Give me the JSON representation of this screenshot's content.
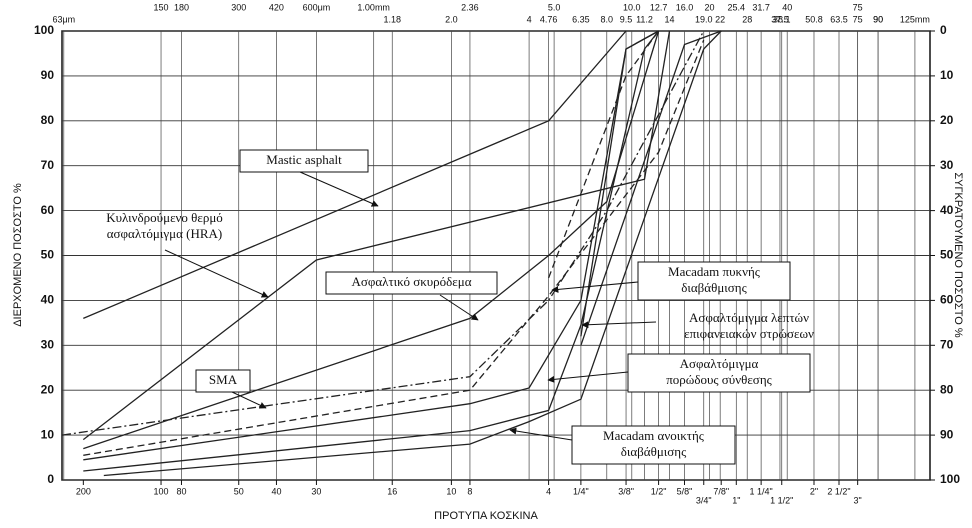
{
  "chart_data": {
    "type": "line",
    "xlabel": "ΠΡΟΤΥΠΑ ΚΟΣΚΙΝΑ",
    "ylabel": "ΔΙΕΡΧΟΜΕΝΟ ΠΟΣΟΣΤΟ %",
    "y2label": "ΣΥΓΚΡΑΤΟΥΜΕΝΟ ΠΟΣΟΣΤΟ %",
    "xscale": "log",
    "xlim": [
      0.062,
      143
    ],
    "ylim": [
      0,
      100
    ],
    "yticks": [
      0,
      10,
      20,
      30,
      40,
      50,
      60,
      70,
      80,
      90,
      100
    ],
    "y2lim": [
      100,
      0
    ],
    "y2ticks": [
      100,
      90,
      80,
      70,
      60,
      50,
      40,
      30,
      20,
      10,
      0
    ],
    "grid": true,
    "x2ticks": [
      {
        "value": 0.063,
        "label": "63μm"
      },
      75,
      90,
      {
        "value": 0.15,
        "label": "150"
      },
      {
        "value": 0.18,
        "label": "180"
      },
      {
        "value": 0.3,
        "label": "300"
      },
      {
        "value": 0.42,
        "label": "420"
      },
      {
        "value": 0.6,
        "label": "600μm"
      },
      {
        "value": 1.0,
        "label": "1.00mm"
      },
      1.18,
      {
        "value": 2.0,
        "label": "2.0"
      },
      2.36,
      4,
      4.76,
      {
        "value": 5.0,
        "label": "5.0"
      },
      6.35,
      {
        "value": 8.0,
        "label": "8.0"
      },
      9.5,
      {
        "value": 10.0,
        "label": "10.0"
      },
      11.2,
      12.7,
      14,
      {
        "value": 16.0,
        "label": "16.0"
      },
      {
        "value": 19.0,
        "label": "19.0"
      },
      20,
      22,
      25.4,
      28,
      31.7,
      37.5,
      38.1,
      40,
      50.8,
      63.5,
      75,
      90,
      {
        "value": 125,
        "label": "125mm"
      }
    ],
    "xticks": [
      {
        "value": 0.075,
        "label": "200"
      },
      {
        "value": 0.15,
        "label": "100"
      },
      {
        "value": 0.18,
        "label": "80"
      },
      {
        "value": 0.3,
        "label": "50"
      },
      {
        "value": 0.42,
        "label": "40"
      },
      {
        "value": 0.6,
        "label": "30"
      },
      {
        "value": 1.18,
        "label": "16"
      },
      {
        "value": 2.0,
        "label": "10"
      },
      {
        "value": 2.36,
        "label": "8"
      },
      {
        "value": 4.76,
        "label": "4"
      },
      {
        "value": 6.35,
        "label": "1/4\""
      },
      {
        "value": 9.5,
        "label": "3/8\""
      },
      {
        "value": 12.7,
        "label": "1/2\""
      },
      {
        "value": 16,
        "label": "5/8\""
      },
      {
        "value": 19,
        "label": "3/4\""
      },
      {
        "value": 22.2,
        "label": "7/8\""
      },
      {
        "value": 25.4,
        "label": "1\""
      },
      {
        "value": 31.7,
        "label": "1 1/4\""
      },
      {
        "value": 38.1,
        "label": "1 1/2\""
      },
      {
        "value": 50.8,
        "label": "2\""
      },
      {
        "value": 63.5,
        "label": "2 1/2\""
      },
      {
        "value": 75,
        "label": "3\""
      }
    ],
    "series": [
      {
        "color": "#222",
        "dash": "solid",
        "x": [
          0.075,
          4.76,
          9.5
        ],
        "values": [
          36,
          80,
          100
        ]
      },
      {
        "color": "#222",
        "dash": "solid",
        "x": [
          0.075,
          0.6,
          11.2,
          14
        ],
        "values": [
          9,
          49,
          67,
          100
        ]
      },
      {
        "color": "#222",
        "dash": "solid",
        "x": [
          0.075,
          2.36,
          4.76,
          8,
          12.7
        ],
        "values": [
          7,
          36,
          50,
          62,
          100
        ]
      },
      {
        "color": "#222",
        "dash": "solid",
        "x": [
          0.075,
          2.36,
          4,
          6.35,
          9.5,
          12.7
        ],
        "values": [
          4.5,
          17,
          20.5,
          40,
          96,
          100
        ]
      },
      {
        "color": "#222",
        "dash": "solid",
        "x": [
          0.075,
          2.36,
          4.76,
          6.35,
          11.2,
          12.7
        ],
        "values": [
          2,
          11,
          15.5,
          34.5,
          96,
          100
        ]
      },
      {
        "color": "#222",
        "dash": "solid",
        "x": [
          0.09,
          2.36,
          4,
          6.35,
          19,
          22.2
        ],
        "values": [
          1,
          8,
          13,
          18,
          96,
          100
        ]
      },
      {
        "color": "#222",
        "dash": "dashdot",
        "x": [
          0.062,
          2.36,
          4.76,
          8,
          19
        ],
        "values": [
          10,
          23,
          40,
          60,
          100
        ]
      },
      {
        "color": "#222",
        "dash": "dashed",
        "x": [
          0.075,
          2.36,
          4.76,
          12.7,
          19
        ],
        "values": [
          5.5,
          20,
          41,
          73,
          98
        ]
      },
      {
        "color": "#222",
        "dash": "solid",
        "x": [
          6.35,
          9.5,
          12.7
        ],
        "values": [
          32,
          96,
          100
        ]
      },
      {
        "color": "#222",
        "dash": "dashed",
        "x": [
          4.76,
          9.5,
          12.7
        ],
        "values": [
          45,
          90,
          100
        ]
      },
      {
        "color": "#222",
        "dash": "solid",
        "x": [
          6.35,
          16,
          22.2
        ],
        "values": [
          30,
          97,
          100
        ]
      }
    ],
    "annotations": [
      {
        "text": [
          "Mastic asphalt"
        ]
      },
      {
        "text": [
          "Κυλινδρούμενο θερμό",
          "ασφαλτόμιγμα (HRA)"
        ]
      },
      {
        "text": [
          "Ασφαλτικό σκυρόδεμα"
        ]
      },
      {
        "text": [
          "SMA"
        ]
      },
      {
        "text": [
          "Macadam πυκνής",
          "διαβάθμισης"
        ]
      },
      {
        "text": [
          "Ασφαλτόμιγμα λεπτών",
          "επιφανειακών στρώσεων"
        ]
      },
      {
        "text": [
          "Ασφαλτόμιγμα",
          "πορώδους σύνθεσης"
        ]
      },
      {
        "text": [
          "Macadam ανοικτής",
          "διαβάθμισης"
        ]
      }
    ]
  }
}
